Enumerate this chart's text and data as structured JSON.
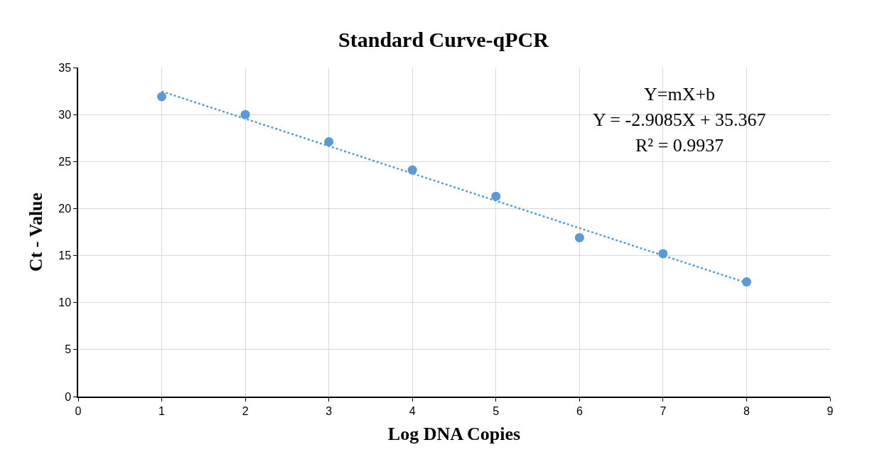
{
  "chart_data": {
    "type": "scatter",
    "title": "Standard Curve-qPCR",
    "xlabel": "Log DNA Copies",
    "ylabel": "Ct - Value",
    "x": [
      1,
      2,
      3,
      4,
      5,
      6,
      7,
      8
    ],
    "series": [
      {
        "color": "#5b9bd5",
        "values": [
          31.9,
          30.0,
          27.1,
          24.1,
          21.3,
          16.9,
          15.2,
          12.2
        ],
        "marker": "circle"
      },
      {
        "type": "line",
        "color": "#5b9bd5",
        "x": [
          1,
          8
        ],
        "values": [
          32.46,
          12.1
        ],
        "line_style": "dotted",
        "marker": "none"
      }
    ],
    "xlim": [
      0,
      9
    ],
    "xticks": [
      0,
      1,
      2,
      3,
      4,
      5,
      6,
      7,
      8,
      9
    ],
    "ylim": [
      0,
      35
    ],
    "yticks": [
      0,
      5,
      10,
      15,
      20,
      25,
      30,
      35
    ],
    "grid": true,
    "annotations": [
      "Y=mX+b",
      "Y = -2.9085X + 35.367",
      "R² = 0.9937"
    ]
  }
}
